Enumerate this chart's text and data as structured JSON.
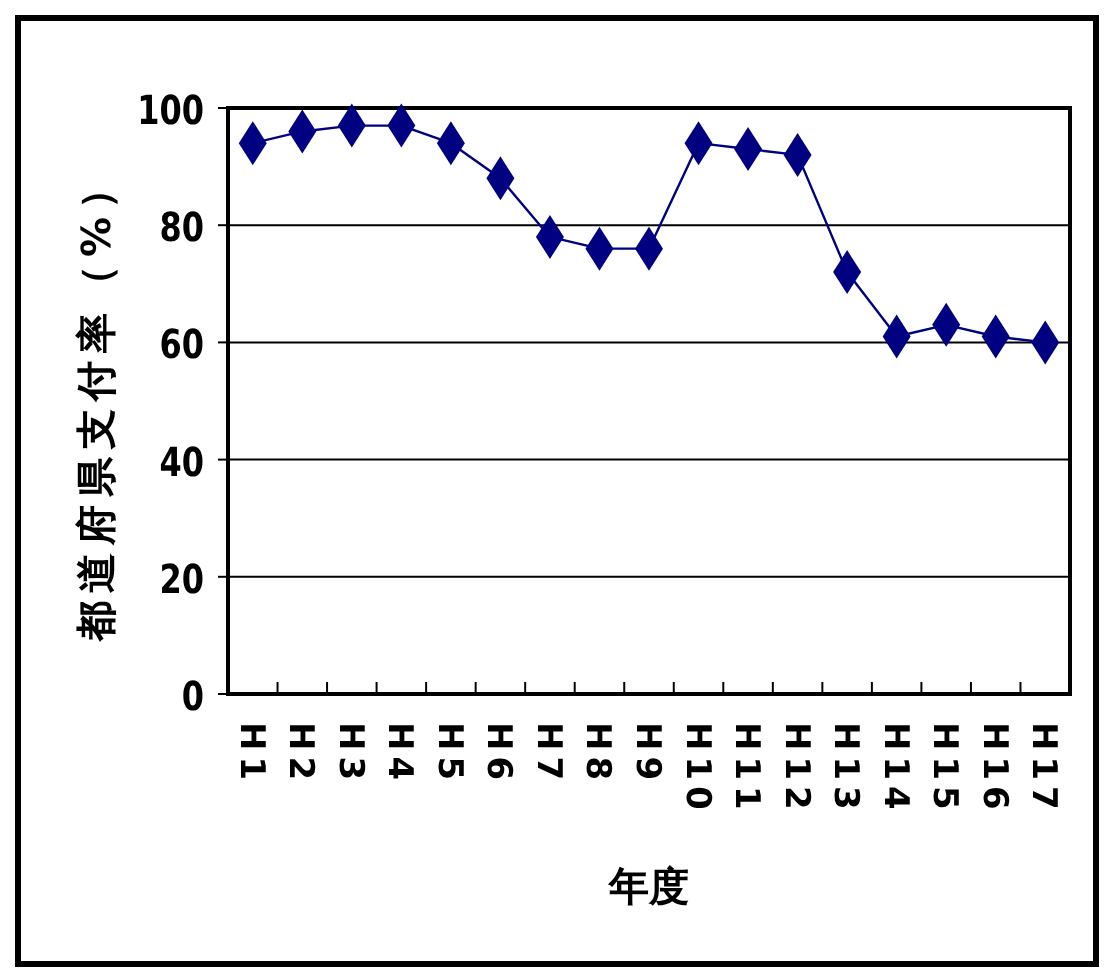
{
  "chart_data": {
    "type": "line",
    "xlabel": "年度",
    "ylabel": "都道府県支付率（%）",
    "categories": [
      "H1",
      "H2",
      "H3",
      "H4",
      "H5",
      "H6",
      "H7",
      "H8",
      "H9",
      "H10",
      "H11",
      "H12",
      "H13",
      "H14",
      "H15",
      "H16",
      "H17"
    ],
    "series": [
      {
        "color": "#000080",
        "values": [
          94,
          96,
          97,
          97,
          94,
          88,
          78,
          76,
          76,
          94,
          93,
          92,
          72,
          61,
          63,
          61,
          60
        ]
      }
    ],
    "ylim": [
      0,
      100
    ],
    "yticks": [
      0,
      20,
      40,
      60,
      80,
      100
    ],
    "grid": "y",
    "marker": "diamond",
    "line_style": "solid"
  }
}
